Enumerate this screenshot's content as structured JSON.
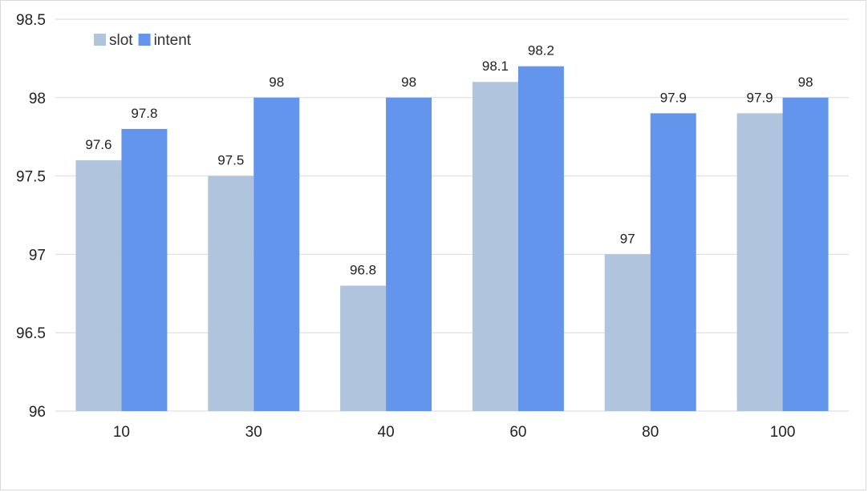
{
  "chart_data": {
    "type": "bar",
    "title": "",
    "xlabel": "",
    "ylabel": "",
    "categories": [
      "10",
      "30",
      "40",
      "60",
      "80",
      "100"
    ],
    "series": [
      {
        "name": "slot",
        "color": "#b0c4de",
        "values": [
          97.6,
          97.5,
          96.8,
          98.1,
          97.0,
          97.9
        ],
        "labels": [
          "97.6",
          "97.5",
          "96.8",
          "98.1",
          "97",
          "97.9"
        ]
      },
      {
        "name": "intent",
        "color": "#6495ed",
        "values": [
          97.8,
          98.0,
          98.0,
          98.2,
          97.9,
          98.0
        ],
        "labels": [
          "97.8",
          "98",
          "98",
          "98.2",
          "97.9",
          "98"
        ]
      }
    ],
    "ylim": [
      96,
      98.5
    ],
    "yticks": [
      "96",
      "96.5",
      "97",
      "97.5",
      "98",
      "98.5"
    ],
    "grid": true,
    "legend_position": "top-left"
  }
}
